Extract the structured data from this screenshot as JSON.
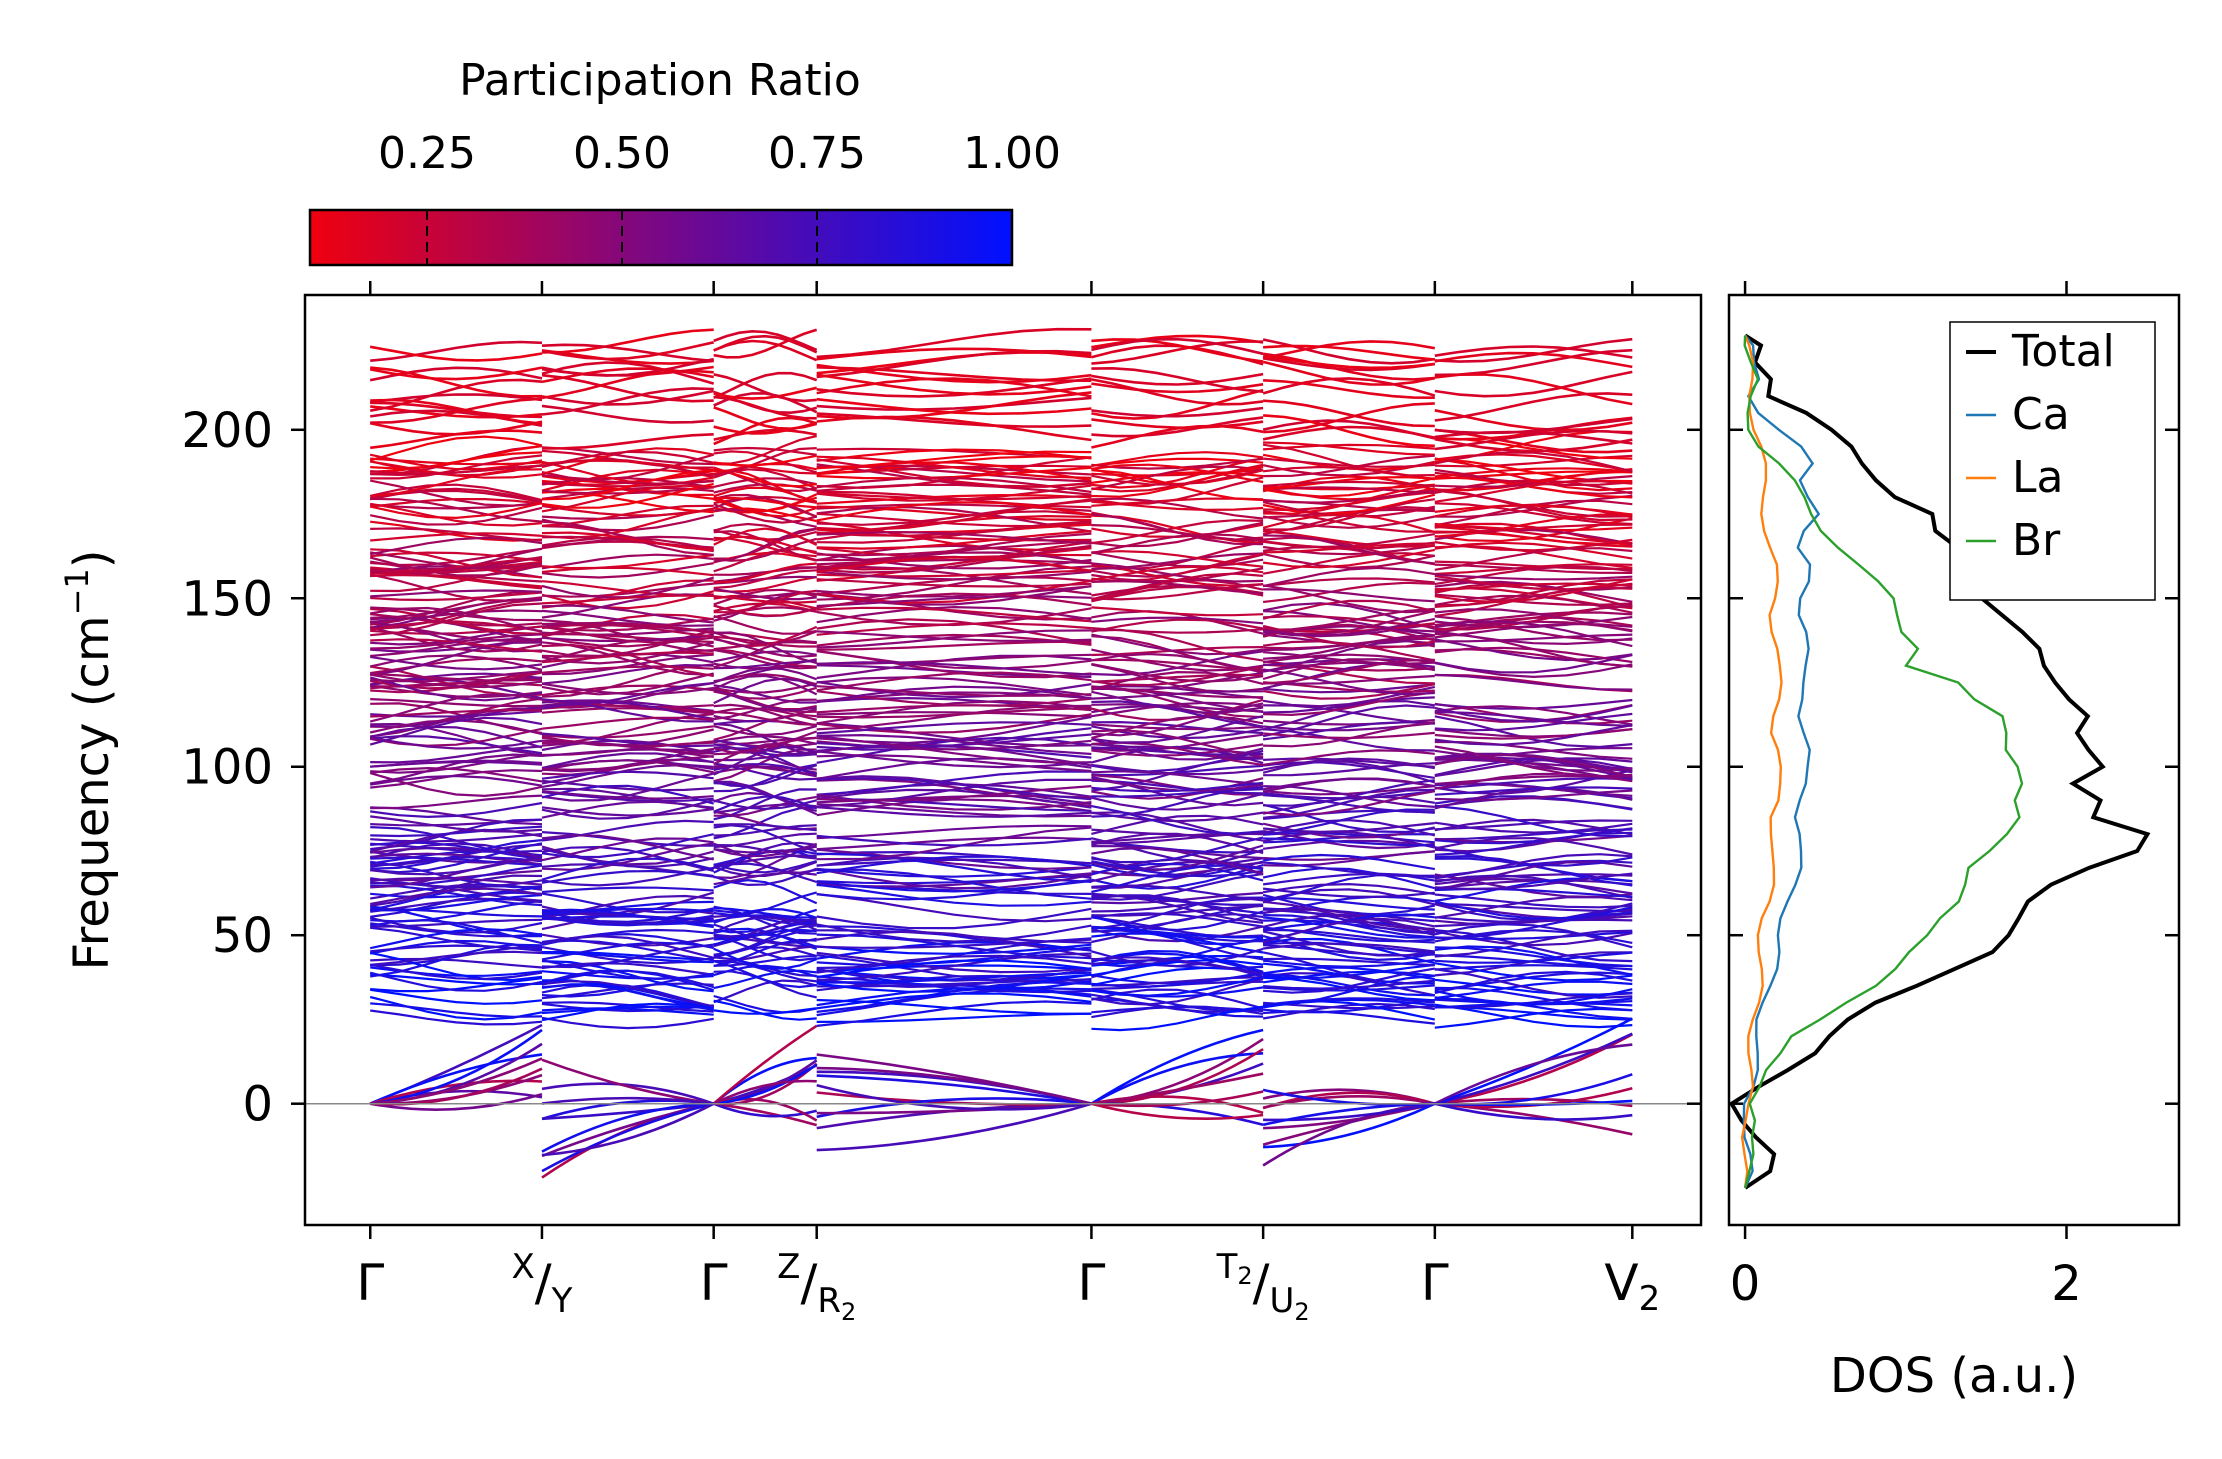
{
  "chart_data": [
    {
      "type": "line",
      "name": "phonon-band-structure",
      "ylabel": "Frequency (cm",
      "ylabel_sup": "−1",
      "ylabel_close": ")",
      "ylim": [
        -36,
        240
      ],
      "yticks": [
        0,
        50,
        100,
        150,
        200
      ],
      "zero_line": true,
      "kpath": [
        {
          "label": "Γ",
          "x": 0.0
        },
        {
          "label_sup": "X",
          "label_slash": "/",
          "label_sub": "Y",
          "x": 1.0
        },
        {
          "label": "Γ",
          "x": 2.0
        },
        {
          "label_sup": "Z",
          "label_slash": "/",
          "label_sub": "R",
          "label_subsub": "2",
          "x": 2.6
        },
        {
          "label": "Γ",
          "x": 4.2
        },
        {
          "label_sup": "T",
          "label_supsub": "2",
          "label_slash": "/",
          "label_sub": "U",
          "label_subsub": "2",
          "x": 5.2
        },
        {
          "label": "Γ",
          "x": 6.2
        },
        {
          "label": "V",
          "label_sub": "2",
          "x": 7.35
        }
      ],
      "xlim": [
        -0.38,
        7.75
      ],
      "color_scale": {
        "title": "Participation Ratio",
        "range": [
          0.1,
          1.0
        ],
        "ticks": [
          "0.25",
          "0.50",
          "0.75",
          "1.00"
        ],
        "tick_values": [
          0.25,
          0.5,
          0.75,
          1.0
        ],
        "low_color": "#f0000f",
        "high_color": "#0010ff"
      },
      "band_summary": {
        "dense_region_cm1": [
          25,
          195
        ],
        "top_bands_cm1": [
          196,
          227
        ],
        "acoustic_at_gamma_cm1": 0,
        "min_negative_cm1": -23
      }
    },
    {
      "type": "line",
      "name": "phonon-dos",
      "xlabel": "DOS (a.u.)",
      "xlim": [
        -0.1,
        2.7
      ],
      "xticks": [
        0,
        2
      ],
      "ylim": [
        -36,
        240
      ],
      "legend_position": "top-right",
      "series": [
        {
          "name": "Total",
          "color": "#000000",
          "freq": [
            -25,
            -20,
            -15,
            -10,
            -5,
            0,
            5,
            10,
            15,
            20,
            25,
            30,
            35,
            40,
            45,
            50,
            55,
            60,
            65,
            70,
            75,
            80,
            85,
            90,
            95,
            100,
            105,
            110,
            115,
            120,
            125,
            130,
            135,
            140,
            145,
            150,
            155,
            160,
            165,
            170,
            175,
            180,
            185,
            190,
            195,
            200,
            205,
            210,
            215,
            220,
            225,
            228
          ],
          "values": [
            0.0,
            0.08,
            0.1,
            0.06,
            0.05,
            0.0,
            0.1,
            0.2,
            0.35,
            0.5,
            0.7,
            0.9,
            1.1,
            1.25,
            1.45,
            1.6,
            1.75,
            1.85,
            1.95,
            2.1,
            2.35,
            2.45,
            2.2,
            2.3,
            2.1,
            2.2,
            2.05,
            2.0,
            2.15,
            2.1,
            2.0,
            1.85,
            1.75,
            1.65,
            1.6,
            1.55,
            1.45,
            1.35,
            1.25,
            1.1,
            1.15,
            1.0,
            0.9,
            0.75,
            0.6,
            0.45,
            0.35,
            0.2,
            0.25,
            0.1,
            0.05,
            0.0
          ]
        },
        {
          "name": "Ca",
          "color": "#1f77b4",
          "freq": [
            -25,
            -20,
            -15,
            -10,
            -5,
            0,
            5,
            10,
            15,
            20,
            25,
            30,
            35,
            40,
            45,
            50,
            55,
            60,
            65,
            70,
            75,
            80,
            85,
            90,
            95,
            100,
            105,
            110,
            115,
            120,
            125,
            130,
            135,
            140,
            145,
            150,
            155,
            160,
            165,
            170,
            175,
            180,
            185,
            190,
            195,
            200,
            205,
            210,
            215,
            220,
            225,
            228
          ],
          "values": [
            0.0,
            0.02,
            0.03,
            0.02,
            0.02,
            0.0,
            0.03,
            0.05,
            0.07,
            0.09,
            0.1,
            0.12,
            0.14,
            0.17,
            0.2,
            0.22,
            0.25,
            0.28,
            0.3,
            0.32,
            0.33,
            0.35,
            0.34,
            0.36,
            0.37,
            0.36,
            0.38,
            0.37,
            0.36,
            0.38,
            0.36,
            0.35,
            0.37,
            0.38,
            0.36,
            0.37,
            0.4,
            0.38,
            0.3,
            0.36,
            0.48,
            0.42,
            0.35,
            0.4,
            0.32,
            0.2,
            0.1,
            0.05,
            0.1,
            0.04,
            0.02,
            0.0
          ]
        },
        {
          "name": "La",
          "color": "#ff7f0e",
          "freq": [
            -25,
            -20,
            -15,
            -10,
            -5,
            0,
            5,
            10,
            15,
            20,
            25,
            30,
            35,
            40,
            45,
            50,
            55,
            60,
            65,
            70,
            75,
            80,
            85,
            90,
            95,
            100,
            105,
            110,
            115,
            120,
            125,
            130,
            135,
            140,
            145,
            150,
            155,
            160,
            165,
            170,
            175,
            180,
            185,
            190,
            195,
            200,
            205,
            210,
            215,
            220,
            225,
            228
          ],
          "values": [
            0.0,
            0.01,
            0.02,
            0.01,
            0.01,
            0.0,
            0.02,
            0.03,
            0.04,
            0.05,
            0.06,
            0.07,
            0.08,
            0.09,
            0.1,
            0.11,
            0.12,
            0.14,
            0.15,
            0.16,
            0.18,
            0.19,
            0.18,
            0.2,
            0.19,
            0.2,
            0.21,
            0.19,
            0.2,
            0.21,
            0.2,
            0.19,
            0.2,
            0.19,
            0.18,
            0.19,
            0.18,
            0.17,
            0.15,
            0.14,
            0.13,
            0.12,
            0.11,
            0.1,
            0.09,
            0.07,
            0.06,
            0.04,
            0.03,
            0.02,
            0.01,
            0.0
          ]
        },
        {
          "name": "Br",
          "color": "#2ca02c",
          "freq": [
            -25,
            -20,
            -15,
            -10,
            -5,
            0,
            5,
            10,
            15,
            20,
            25,
            30,
            35,
            40,
            45,
            50,
            55,
            60,
            65,
            70,
            75,
            80,
            85,
            90,
            95,
            100,
            105,
            110,
            115,
            120,
            125,
            130,
            135,
            140,
            145,
            150,
            155,
            160,
            165,
            170,
            175,
            180,
            185,
            190,
            195,
            200,
            205,
            210,
            215,
            220,
            225,
            228
          ],
          "values": [
            0.0,
            0.05,
            0.08,
            0.05,
            0.04,
            0.0,
            0.08,
            0.15,
            0.25,
            0.3,
            0.45,
            0.6,
            0.8,
            0.95,
            1.05,
            1.15,
            1.2,
            1.3,
            1.35,
            1.4,
            1.55,
            1.65,
            1.7,
            1.65,
            1.7,
            1.7,
            1.65,
            1.65,
            1.6,
            1.4,
            1.3,
            1.0,
            1.1,
            1.0,
            0.95,
            0.9,
            0.8,
            0.7,
            0.6,
            0.5,
            0.42,
            0.35,
            0.28,
            0.2,
            0.1,
            0.05,
            0.03,
            0.02,
            0.05,
            0.02,
            0.01,
            0.0
          ]
        }
      ]
    }
  ]
}
